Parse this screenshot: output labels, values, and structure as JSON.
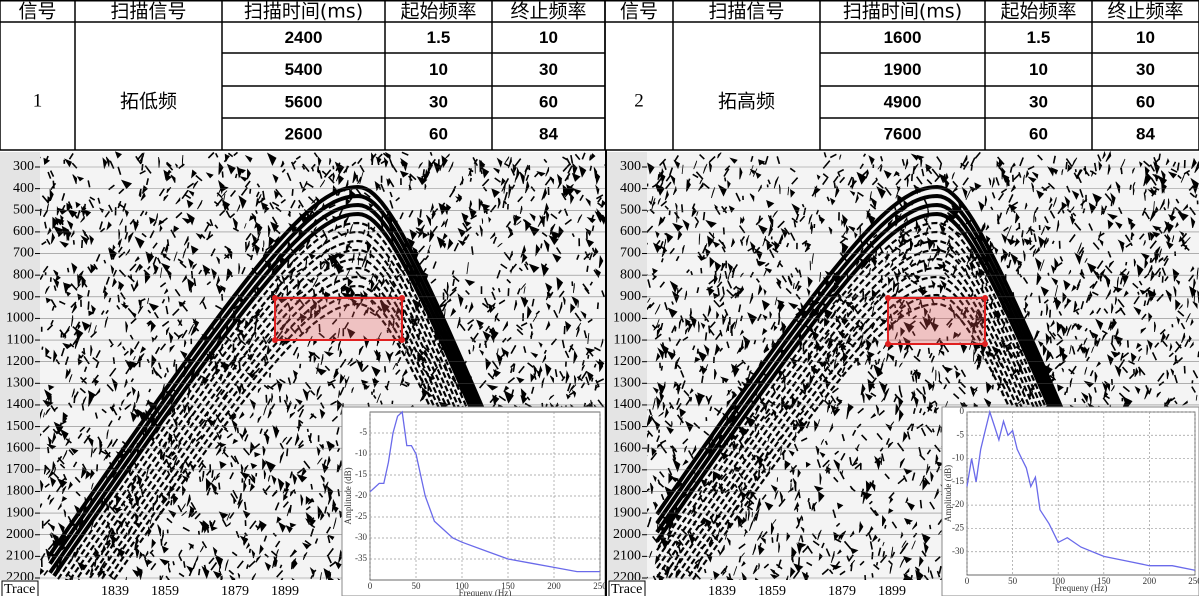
{
  "table": {
    "header": [
      "信号",
      "扫描信号",
      "扫描时间(ms)",
      "起始频率",
      "终止频率",
      "信号",
      "扫描信号",
      "扫描时间(ms)",
      "起始频率",
      "终止频率"
    ],
    "groups": [
      {
        "signal": "1",
        "sweep": "拓低频",
        "rows": [
          [
            2400,
            1.5,
            10
          ],
          [
            5400,
            10,
            30
          ],
          [
            5600,
            30,
            60
          ],
          [
            2600,
            60,
            84
          ]
        ]
      },
      {
        "signal": "2",
        "sweep": "拓高频",
        "rows": [
          [
            1600,
            1.5,
            10
          ],
          [
            1900,
            10,
            30
          ],
          [
            4900,
            30,
            60
          ],
          [
            7600,
            60,
            84
          ]
        ]
      }
    ]
  },
  "panels": [
    {
      "yticks": [
        300,
        400,
        500,
        600,
        700,
        800,
        900,
        1000,
        1100,
        1200,
        1300,
        1400,
        1500,
        1600,
        1700,
        1800,
        1900,
        2000,
        2100,
        2200
      ],
      "trace_label": "Trace",
      "traces": [
        1839,
        1859,
        1879,
        1899
      ],
      "spectrum": {
        "type": "line",
        "x_label": "Frequeny (Hz)",
        "y_label": "Amplitude (dB)",
        "color": "#6a6aea",
        "xlim": [
          0,
          250
        ],
        "xticks": [
          0,
          50,
          100,
          150,
          200,
          250
        ],
        "ylim": [
          -40,
          0
        ],
        "yticks": [
          -35,
          -30,
          -25,
          -20,
          -15,
          -10,
          -5
        ],
        "x": [
          0,
          5,
          10,
          15,
          20,
          25,
          30,
          35,
          40,
          45,
          50,
          55,
          60,
          70,
          80,
          90,
          100,
          125,
          150,
          175,
          200,
          225,
          250
        ],
        "values": [
          -19,
          -18,
          -17,
          -17,
          -12,
          -5,
          -1,
          0,
          -8,
          -8,
          -10,
          -15,
          -20,
          -26,
          -28,
          -30,
          -31,
          -33,
          -35,
          -36,
          -37,
          -38,
          -38
        ]
      }
    },
    {
      "yticks": [
        300,
        400,
        500,
        600,
        700,
        800,
        900,
        1000,
        1100,
        1200,
        1300,
        1400,
        1500,
        1600,
        1700,
        1800,
        1900,
        2000,
        2100,
        2200
      ],
      "trace_label": "Trace",
      "traces": [
        1839,
        1859,
        1879,
        1899
      ],
      "spectrum": {
        "type": "line",
        "x_label": "Frequeny (Hz)",
        "y_label": "Amplitude (dB)",
        "color": "#6a6aea",
        "xlim": [
          0,
          250
        ],
        "xticks": [
          0,
          50,
          100,
          150,
          200,
          250
        ],
        "ylim": [
          -35,
          0
        ],
        "yticks": [
          0,
          -5,
          -10,
          -15,
          -20,
          -25,
          -30
        ],
        "x": [
          0,
          5,
          10,
          15,
          20,
          25,
          30,
          35,
          40,
          45,
          50,
          55,
          60,
          65,
          70,
          75,
          80,
          90,
          100,
          110,
          125,
          150,
          175,
          200,
          225,
          250
        ],
        "values": [
          -16,
          -10,
          -15,
          -8,
          -4,
          0,
          -3,
          -6,
          -2,
          -5,
          -4,
          -8,
          -10,
          -12,
          -16,
          -14,
          -21,
          -24,
          -28,
          -27,
          -29,
          -31,
          -32,
          -33,
          -33,
          -34
        ]
      }
    }
  ]
}
